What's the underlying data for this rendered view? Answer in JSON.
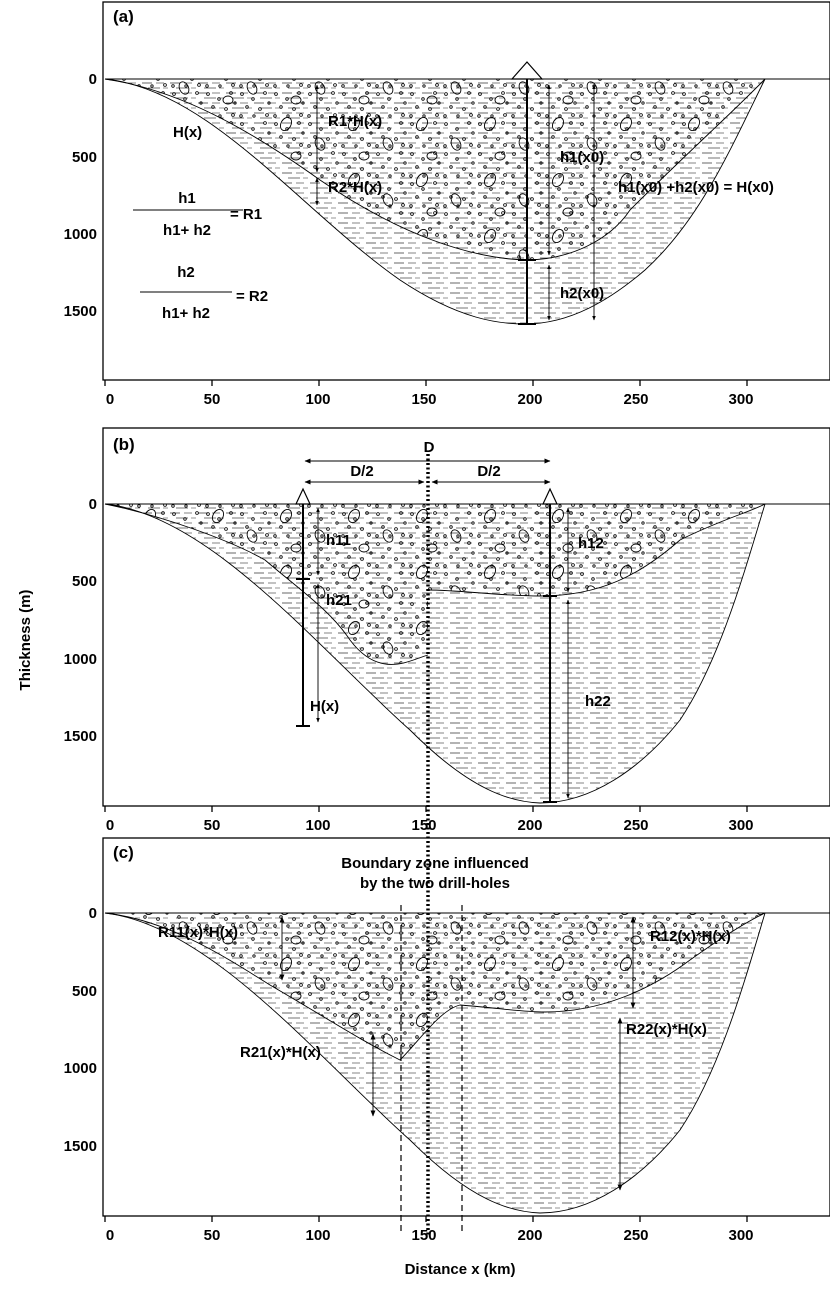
{
  "figure": {
    "y_axis_title": "Thickness (m)",
    "x_axis_title": "Distance x (km)",
    "x_ticks": [
      "0",
      "50",
      "100",
      "150",
      "200",
      "250",
      "300"
    ],
    "y_ticks": [
      "0",
      "500",
      "1000",
      "1500"
    ]
  },
  "panel_a": {
    "label": "(a)",
    "basin_label": "H(x)",
    "r1_label": "R1*H(x)",
    "r2_label": "R2*H(x)",
    "h1x0_label": "h1(x0)",
    "h2x0_label": "h2(x0)",
    "sum_label": "h1(x0) +h2(x0) = H(x0)",
    "ratio1": {
      "numerator": "h1",
      "denominator": "h1+ h2",
      "result": "= R1"
    },
    "ratio2": {
      "numerator": "h2",
      "denominator": "h1+ h2",
      "result": "= R2"
    }
  },
  "panel_b": {
    "label": "(b)",
    "d_label": "D",
    "half_left": "D/2",
    "half_right": "D/2",
    "h11": "h11",
    "h21": "h21",
    "h12": "h12",
    "h22": "h22",
    "basin_label": "H(x)"
  },
  "panel_c": {
    "label": "(c)",
    "boundary_line1": "Boundary zone influenced",
    "boundary_line2": "by the two drill-holes",
    "r11": "R11(x)*H(x)",
    "r12": "R12(x)*H(x)",
    "r21": "R21(x)*H(x)",
    "r22": "R22(x)*H(x)"
  }
}
